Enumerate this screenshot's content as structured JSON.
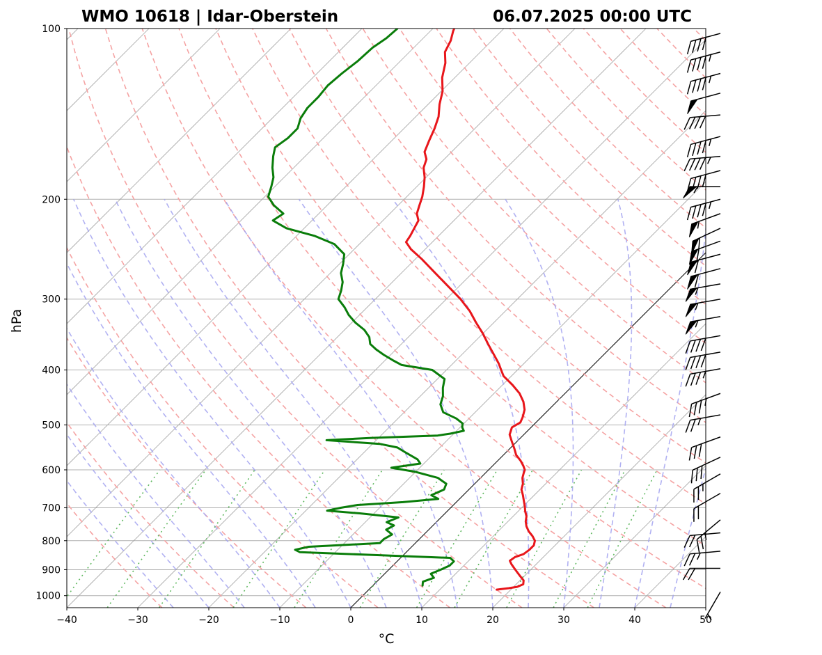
{
  "chart_data": {
    "type": "line",
    "title_left": "WMO 10618 | Idar-Oberstein",
    "title_right": "06.07.2025 00:00 UTC",
    "xlabel": "°C",
    "ylabel": "hPa",
    "xlim": [
      -40,
      50
    ],
    "ylim": [
      1050,
      100
    ],
    "y_scale": "log",
    "x_ticks": [
      "−40",
      "−30",
      "−20",
      "−10",
      "0",
      "10",
      "20",
      "30",
      "40",
      "50"
    ],
    "y_ticks": [
      "100",
      "200",
      "300",
      "400",
      "500",
      "600",
      "700",
      "800",
      "900",
      "1000"
    ],
    "grid": true,
    "colors": {
      "temperature": "#e8161b",
      "dewpoint": "#0a7d0a",
      "dry_adiabat": "#f5a3a3",
      "moist_adiabat": "#a3a3f0",
      "mixing_ratio": "#5fb85f",
      "isotherm": "#999999"
    },
    "series": [
      {
        "key": "temperature",
        "points": [
          [
            976,
            18.0
          ],
          [
            970,
            19.5
          ],
          [
            965,
            20.5
          ],
          [
            955,
            21.0
          ],
          [
            940,
            20.5
          ],
          [
            925,
            19.5
          ],
          [
            910,
            18.5
          ],
          [
            895,
            17.5
          ],
          [
            880,
            16.5
          ],
          [
            868,
            15.8
          ],
          [
            855,
            16.0
          ],
          [
            845,
            16.8
          ],
          [
            830,
            17.0
          ],
          [
            815,
            17.0
          ],
          [
            800,
            16.5
          ],
          [
            785,
            15.5
          ],
          [
            770,
            14.3
          ],
          [
            755,
            13.3
          ],
          [
            740,
            12.5
          ],
          [
            725,
            11.9
          ],
          [
            710,
            11.0
          ],
          [
            695,
            10.2
          ],
          [
            680,
            9.3
          ],
          [
            665,
            8.4
          ],
          [
            650,
            7.4
          ],
          [
            635,
            6.8
          ],
          [
            620,
            5.9
          ],
          [
            608,
            5.4
          ],
          [
            600,
            5.1
          ],
          [
            590,
            4.3
          ],
          [
            578,
            3.2
          ],
          [
            565,
            1.8
          ],
          [
            550,
            0.6
          ],
          [
            535,
            -0.7
          ],
          [
            520,
            -2.0
          ],
          [
            505,
            -2.7
          ],
          [
            495,
            -2.2
          ],
          [
            485,
            -2.6
          ],
          [
            470,
            -3.4
          ],
          [
            455,
            -4.7
          ],
          [
            440,
            -6.4
          ],
          [
            425,
            -8.6
          ],
          [
            410,
            -11.1
          ],
          [
            400,
            -12.3
          ],
          [
            390,
            -13.5
          ],
          [
            375,
            -15.6
          ],
          [
            360,
            -17.8
          ],
          [
            345,
            -20.0
          ],
          [
            330,
            -22.5
          ],
          [
            315,
            -25.0
          ],
          [
            300,
            -28.0
          ],
          [
            285,
            -31.5
          ],
          [
            270,
            -35.2
          ],
          [
            255,
            -39.1
          ],
          [
            245,
            -42.0
          ],
          [
            238,
            -43.7
          ],
          [
            232,
            -44.0
          ],
          [
            225,
            -44.5
          ],
          [
            218,
            -45.0
          ],
          [
            212,
            -46.2
          ],
          [
            205,
            -47.0
          ],
          [
            198,
            -47.8
          ],
          [
            190,
            -49.0
          ],
          [
            183,
            -50.2
          ],
          [
            176,
            -51.7
          ],
          [
            170,
            -52.5
          ],
          [
            165,
            -53.8
          ],
          [
            158,
            -54.7
          ],
          [
            150,
            -55.7
          ],
          [
            143,
            -56.8
          ],
          [
            136,
            -58.4
          ],
          [
            129,
            -59.8
          ],
          [
            122,
            -61.8
          ],
          [
            115,
            -63.4
          ],
          [
            110,
            -65.0
          ],
          [
            105,
            -65.8
          ],
          [
            101,
            -66.8
          ],
          [
            100,
            -67.0
          ]
        ]
      },
      {
        "key": "dewpoint",
        "points": [
          [
            960,
            7.0
          ],
          [
            945,
            6.5
          ],
          [
            930,
            7.5
          ],
          [
            915,
            6.5
          ],
          [
            900,
            7.3
          ],
          [
            885,
            8.0
          ],
          [
            870,
            8.0
          ],
          [
            858,
            7.0
          ],
          [
            847,
            -5.0
          ],
          [
            838,
            -15.0
          ],
          [
            830,
            -16.0
          ],
          [
            820,
            -14.5
          ],
          [
            808,
            -5.0
          ],
          [
            795,
            -5.0
          ],
          [
            780,
            -4.5
          ],
          [
            765,
            -6.0
          ],
          [
            752,
            -5.5
          ],
          [
            742,
            -7.0
          ],
          [
            728,
            -6.0
          ],
          [
            716,
            -12.0
          ],
          [
            708,
            -17.0
          ],
          [
            700,
            -15.5
          ],
          [
            692,
            -13.5
          ],
          [
            684,
            -7.5
          ],
          [
            675,
            -3.0
          ],
          [
            665,
            -4.5
          ],
          [
            650,
            -3.5
          ],
          [
            635,
            -4.0
          ],
          [
            620,
            -6.0
          ],
          [
            605,
            -10.0
          ],
          [
            595,
            -14.0
          ],
          [
            585,
            -10.5
          ],
          [
            575,
            -11.5
          ],
          [
            560,
            -14.0
          ],
          [
            548,
            -16.0
          ],
          [
            540,
            -19.0
          ],
          [
            532,
            -27.0
          ],
          [
            527,
            -21.0
          ],
          [
            522,
            -12.0
          ],
          [
            518,
            -10.5
          ],
          [
            512,
            -9.0
          ],
          [
            505,
            -9.7
          ],
          [
            497,
            -10.2
          ],
          [
            487,
            -11.8
          ],
          [
            475,
            -14.5
          ],
          [
            460,
            -16.0
          ],
          [
            445,
            -16.8
          ],
          [
            430,
            -18.0
          ],
          [
            415,
            -19.0
          ],
          [
            400,
            -22.0
          ],
          [
            392,
            -27.0
          ],
          [
            385,
            -28.8
          ],
          [
            376,
            -31.0
          ],
          [
            368,
            -32.8
          ],
          [
            360,
            -34.4
          ],
          [
            350,
            -35.5
          ],
          [
            340,
            -37.2
          ],
          [
            330,
            -39.5
          ],
          [
            320,
            -41.5
          ],
          [
            310,
            -43.2
          ],
          [
            300,
            -45.2
          ],
          [
            290,
            -46.0
          ],
          [
            280,
            -47.0
          ],
          [
            270,
            -48.5
          ],
          [
            260,
            -49.5
          ],
          [
            250,
            -50.7
          ],
          [
            240,
            -53.5
          ],
          [
            232,
            -57.5
          ],
          [
            225,
            -62.5
          ],
          [
            218,
            -65.5
          ],
          [
            212,
            -65.0
          ],
          [
            205,
            -67.5
          ],
          [
            198,
            -69.5
          ],
          [
            190,
            -70.5
          ],
          [
            183,
            -71.5
          ],
          [
            176,
            -73.0
          ],
          [
            168,
            -74.5
          ],
          [
            162,
            -75.5
          ],
          [
            156,
            -75.0
          ],
          [
            150,
            -75.0
          ],
          [
            144,
            -76.0
          ],
          [
            138,
            -76.5
          ],
          [
            132,
            -76.5
          ],
          [
            126,
            -76.8
          ],
          [
            120,
            -76.5
          ],
          [
            114,
            -76.0
          ],
          [
            108,
            -75.8
          ],
          [
            104,
            -75.2
          ],
          [
            100,
            -75.0
          ]
        ]
      }
    ],
    "wind_barbs": [
      {
        "pressure": 102,
        "speed_kt": 40,
        "from_deg": 255
      },
      {
        "pressure": 110,
        "speed_kt": 45,
        "from_deg": 255
      },
      {
        "pressure": 120,
        "speed_kt": 45,
        "from_deg": 255
      },
      {
        "pressure": 130,
        "speed_kt": 50,
        "from_deg": 255
      },
      {
        "pressure": 142,
        "speed_kt": 40,
        "from_deg": 265
      },
      {
        "pressure": 155,
        "speed_kt": 45,
        "from_deg": 255
      },
      {
        "pressure": 168,
        "speed_kt": 45,
        "from_deg": 265
      },
      {
        "pressure": 178,
        "speed_kt": 40,
        "from_deg": 255
      },
      {
        "pressure": 190,
        "speed_kt": 55,
        "from_deg": 270
      },
      {
        "pressure": 200,
        "speed_kt": 45,
        "from_deg": 255
      },
      {
        "pressure": 212,
        "speed_kt": 55,
        "from_deg": 250
      },
      {
        "pressure": 225,
        "speed_kt": 60,
        "from_deg": 245
      },
      {
        "pressure": 237,
        "speed_kt": 60,
        "from_deg": 250
      },
      {
        "pressure": 250,
        "speed_kt": 60,
        "from_deg": 255
      },
      {
        "pressure": 265,
        "speed_kt": 60,
        "from_deg": 255
      },
      {
        "pressure": 282,
        "speed_kt": 55,
        "from_deg": 260
      },
      {
        "pressure": 300,
        "speed_kt": 55,
        "from_deg": 260
      },
      {
        "pressure": 322,
        "speed_kt": 55,
        "from_deg": 260
      },
      {
        "pressure": 348,
        "speed_kt": 40,
        "from_deg": 260
      },
      {
        "pressure": 372,
        "speed_kt": 40,
        "from_deg": 260
      },
      {
        "pressure": 398,
        "speed_kt": 35,
        "from_deg": 260
      },
      {
        "pressure": 440,
        "speed_kt": 35,
        "from_deg": 250
      },
      {
        "pressure": 480,
        "speed_kt": 25,
        "from_deg": 260
      },
      {
        "pressure": 525,
        "speed_kt": 30,
        "from_deg": 250
      },
      {
        "pressure": 570,
        "speed_kt": 30,
        "from_deg": 245
      },
      {
        "pressure": 610,
        "speed_kt": 25,
        "from_deg": 240
      },
      {
        "pressure": 660,
        "speed_kt": 20,
        "from_deg": 240
      },
      {
        "pressure": 735,
        "speed_kt": 25,
        "from_deg": 230
      },
      {
        "pressure": 775,
        "speed_kt": 20,
        "from_deg": 265
      },
      {
        "pressure": 835,
        "speed_kt": 25,
        "from_deg": 265
      },
      {
        "pressure": 895,
        "speed_kt": 20,
        "from_deg": 270
      },
      {
        "pressure": 985,
        "speed_kt": 5,
        "from_deg": 210
      }
    ]
  }
}
